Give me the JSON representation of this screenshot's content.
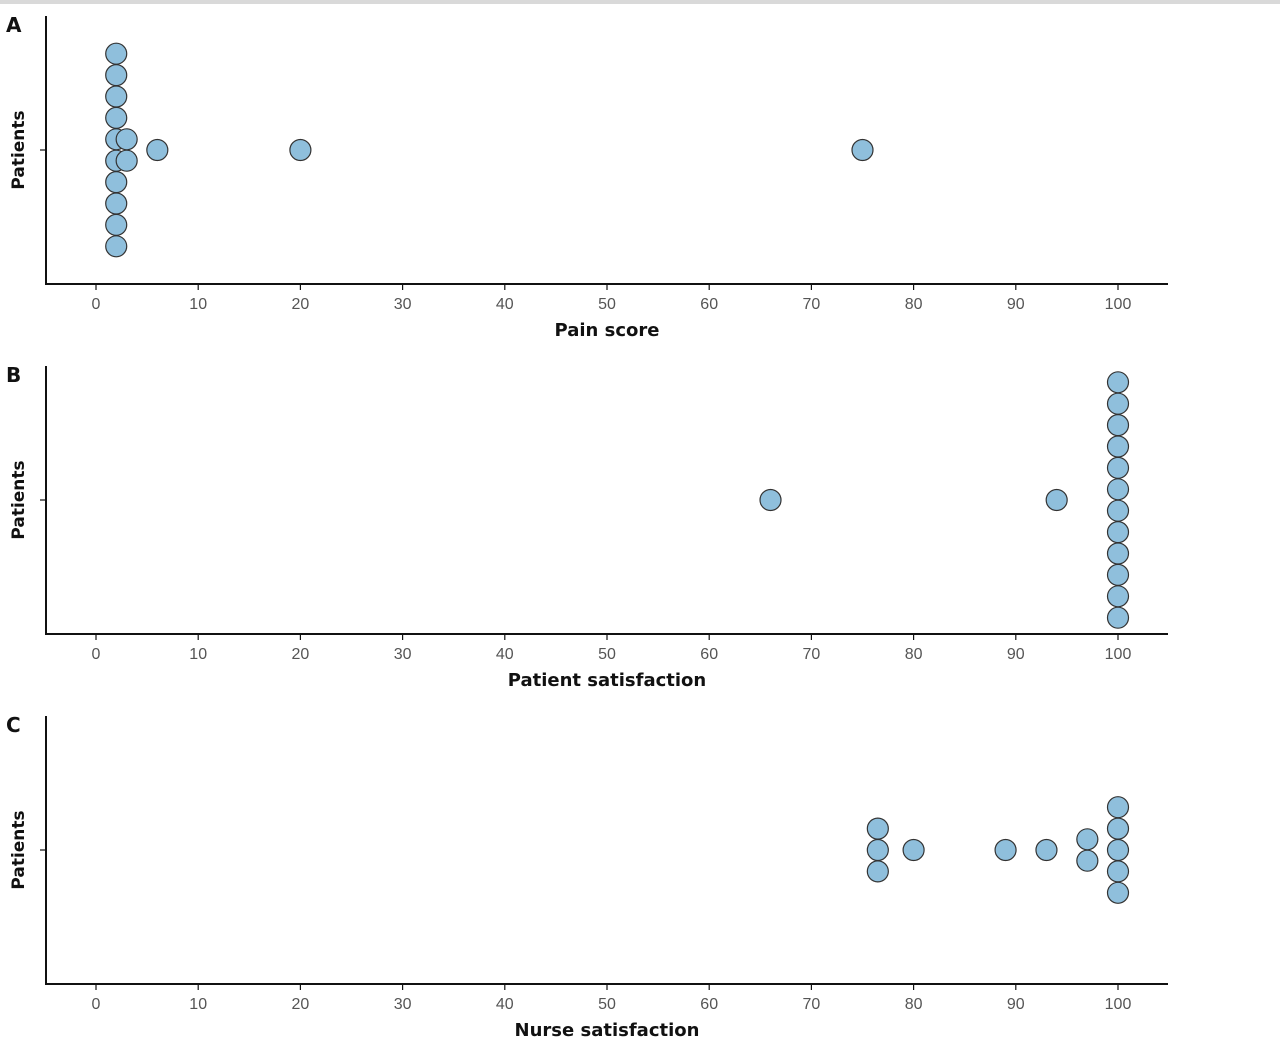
{
  "figure": {
    "dot_color": "#8fbfdc",
    "dot_stroke": "#333333"
  },
  "chart_data": [
    {
      "type": "scatter",
      "subtype": "dotplot",
      "panel_label": "A",
      "xlabel": "Pain score",
      "ylabel": "Patients",
      "xlim": [
        0,
        100
      ],
      "xticks": [
        0,
        10,
        20,
        30,
        40,
        50,
        60,
        70,
        80,
        90,
        100
      ],
      "grid": false,
      "legend": "none",
      "values": [
        1,
        1,
        1,
        1,
        1,
        1,
        1,
        1,
        1,
        1,
        3,
        3,
        6,
        20,
        75
      ]
    },
    {
      "type": "scatter",
      "subtype": "dotplot",
      "panel_label": "B",
      "xlabel": "Patient satisfaction",
      "ylabel": "Patients",
      "xlim": [
        0,
        100
      ],
      "xticks": [
        0,
        10,
        20,
        30,
        40,
        50,
        60,
        70,
        80,
        90,
        100
      ],
      "grid": false,
      "legend": "none",
      "values": [
        66,
        94,
        100,
        100,
        100,
        100,
        100,
        100,
        100,
        100,
        100,
        100,
        100,
        100
      ]
    },
    {
      "type": "scatter",
      "subtype": "dotplot",
      "panel_label": "C",
      "xlabel": "Nurse satisfaction",
      "ylabel": "Patients",
      "xlim": [
        0,
        100
      ],
      "xticks": [
        0,
        10,
        20,
        30,
        40,
        50,
        60,
        70,
        80,
        90,
        100
      ],
      "grid": false,
      "legend": "none",
      "values": [
        76.5,
        76.5,
        76.5,
        80,
        89,
        93,
        97,
        97,
        100,
        100,
        100,
        100,
        100
      ]
    }
  ]
}
